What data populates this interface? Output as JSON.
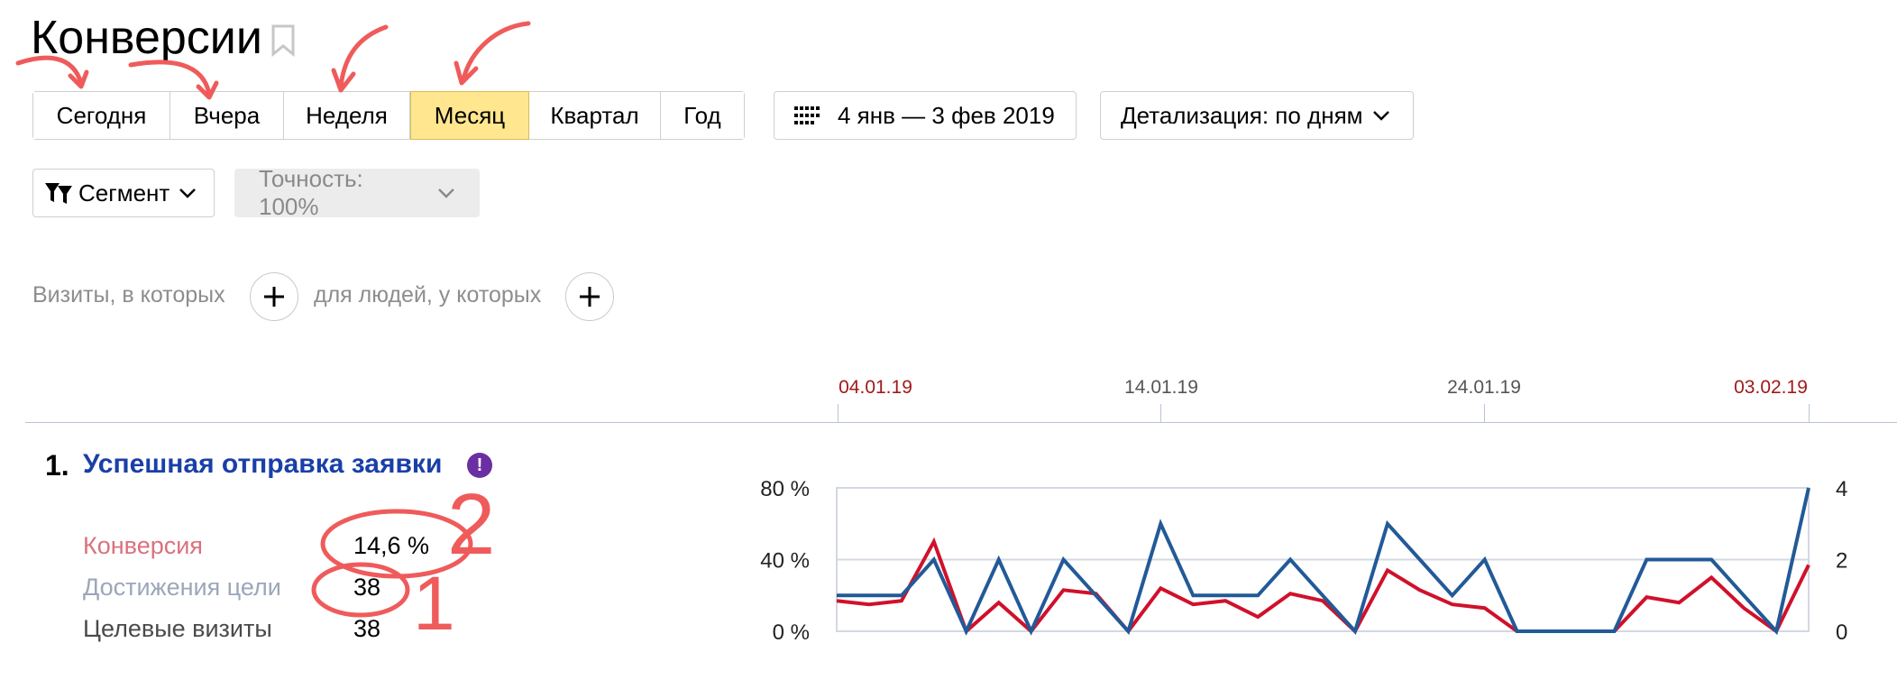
{
  "page": {
    "title": "Конверсии"
  },
  "periods": [
    {
      "label": "Сегодня",
      "active": false
    },
    {
      "label": "Вчера",
      "active": false
    },
    {
      "label": "Неделя",
      "active": false
    },
    {
      "label": "Месяц",
      "active": true
    },
    {
      "label": "Квартал",
      "active": false
    },
    {
      "label": "Год",
      "active": false
    }
  ],
  "date_range": {
    "label": "4 янв — 3 фев 2019",
    "icon": "calendar-grid-icon"
  },
  "detail": {
    "label": "Детализация: по дням"
  },
  "segment": {
    "label": "Сегмент",
    "icon": "filter-icon"
  },
  "accuracy": {
    "label": "Точность: 100%"
  },
  "segment_builder": {
    "visits_label": "Визиты, в которых",
    "people_label": "для людей, у которых"
  },
  "timeline": {
    "dates": [
      "04.01.19",
      "14.01.19",
      "24.01.19",
      "03.02.19"
    ],
    "highlighted": [
      "04.01.19",
      "03.02.19"
    ]
  },
  "goal": {
    "number": "1.",
    "title": "Успешная отправка заявки",
    "badge": "!",
    "metrics": [
      {
        "label": "Конверсия",
        "value": "14,6 %",
        "color": "#d9727e"
      },
      {
        "label": "Достижения цели",
        "value": "38",
        "color": "#9ba7b9"
      },
      {
        "label": "Целевые визиты",
        "value": "38",
        "color": "#4a4a4a"
      }
    ]
  },
  "annotations": [
    "2",
    "1"
  ],
  "chart_data": {
    "type": "line",
    "x": [
      "04.01.19",
      "05.01.19",
      "06.01.19",
      "07.01.19",
      "08.01.19",
      "09.01.19",
      "10.01.19",
      "11.01.19",
      "12.01.19",
      "13.01.19",
      "14.01.19",
      "15.01.19",
      "16.01.19",
      "17.01.19",
      "18.01.19",
      "19.01.19",
      "20.01.19",
      "21.01.19",
      "22.01.19",
      "23.01.19",
      "24.01.19",
      "25.01.19",
      "26.01.19",
      "27.01.19",
      "28.01.19",
      "29.01.19",
      "30.01.19",
      "31.01.19",
      "01.02.19",
      "02.02.19",
      "03.02.19"
    ],
    "y_left": {
      "ticks": [
        "80 %",
        "40 %",
        "0 %"
      ],
      "range": [
        0,
        80
      ]
    },
    "y_right": {
      "ticks": [
        "4",
        "2",
        "0"
      ],
      "range": [
        0,
        4
      ]
    },
    "series": [
      {
        "color": "#d0112b",
        "axis": "left",
        "values": [
          17,
          15,
          17,
          50,
          0,
          16,
          0,
          23,
          21,
          0,
          24,
          15,
          17,
          8,
          21,
          17,
          0,
          34,
          23,
          15,
          13,
          0,
          0,
          0,
          0,
          19,
          16,
          30,
          13,
          0,
          37
        ]
      },
      {
        "color": "#225a97",
        "axis": "right",
        "values": [
          1,
          1,
          1,
          2,
          0,
          2,
          0,
          2,
          1,
          0,
          3,
          1,
          1,
          1,
          2,
          1,
          0,
          3,
          2,
          1,
          2,
          0,
          0,
          0,
          0,
          2,
          2,
          2,
          1,
          0,
          4
        ]
      }
    ],
    "grid": true
  }
}
